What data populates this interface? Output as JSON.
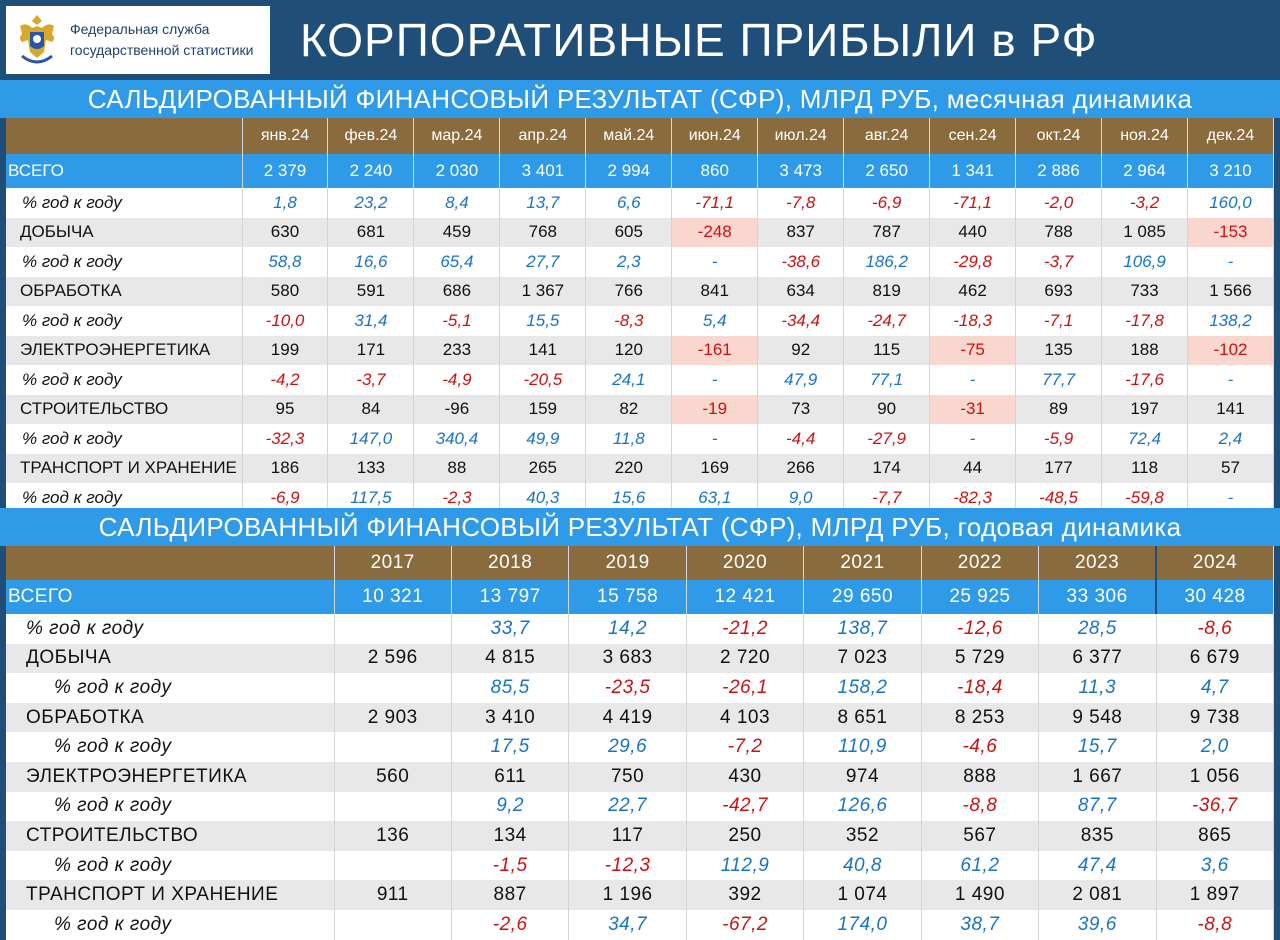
{
  "header": {
    "org_line1": "Федеральная служба",
    "org_line2": "государственной статистики",
    "title": "КОРПОРАТИВНЫЕ ПРИБЫЛИ в РФ"
  },
  "monthly": {
    "title": "САЛЬДИРОВАННЫЙ ФИНАНСОВЫЙ РЕЗУЛЬТАТ (СФР), МЛРД РУБ, месячная динамика",
    "months": [
      "янв.24",
      "фев.24",
      "мар.24",
      "апр.24",
      "май.24",
      "июн.24",
      "июл.24",
      "авг.24",
      "сен.24",
      "окт.24",
      "ноя.24",
      "дек.24"
    ],
    "total": {
      "label": "ВСЕГО",
      "values": [
        "2 379",
        "2 240",
        "2 030",
        "3 401",
        "2 994",
        "860",
        "3 473",
        "2 650",
        "1 341",
        "2 886",
        "2 964",
        "3 210"
      ]
    },
    "total_pct": {
      "label": "% год к году",
      "values": [
        "1,8",
        "23,2",
        "8,4",
        "13,7",
        "6,6",
        "-71,1",
        "-7,8",
        "-6,9",
        "-71,1",
        "-2,0",
        "-3,2",
        "160,0"
      ]
    },
    "rows": [
      {
        "label": "ДОБЫЧА",
        "values": [
          "630",
          "681",
          "459",
          "768",
          "605",
          "-248",
          "837",
          "787",
          "440",
          "788",
          "1 085",
          "-153"
        ],
        "pct_label": "% год к году",
        "pct": [
          "58,8",
          "16,6",
          "65,4",
          "27,7",
          "2,3",
          "-",
          "-38,6",
          "186,2",
          "-29,8",
          "-3,7",
          "106,9",
          "-"
        ]
      },
      {
        "label": "ОБРАБОТКА",
        "values": [
          "580",
          "591",
          "686",
          "1 367",
          "766",
          "841",
          "634",
          "819",
          "462",
          "693",
          "733",
          "1 566"
        ],
        "pct_label": "% год к году",
        "pct": [
          "-10,0",
          "31,4",
          "-5,1",
          "15,5",
          "-8,3",
          "5,4",
          "-34,4",
          "-24,7",
          "-18,3",
          "-7,1",
          "-17,8",
          "138,2"
        ]
      },
      {
        "label": "ЭЛЕКТРОЭНЕРГЕТИКА",
        "values": [
          "199",
          "171",
          "233",
          "141",
          "120",
          "-161",
          "92",
          "115",
          "-75",
          "135",
          "188",
          "-102"
        ],
        "pct_label": "% год к году",
        "pct": [
          "-4,2",
          "-3,7",
          "-4,9",
          "-20,5",
          "24,1",
          "-",
          "47,9",
          "77,1",
          "-",
          "77,7",
          "-17,6",
          "-"
        ]
      },
      {
        "label": "СТРОИТЕЛЬСТВО",
        "values": [
          "95",
          "84",
          "-96",
          "159",
          "82",
          "-19",
          "73",
          "90",
          "-31",
          "89",
          "197",
          "141"
        ],
        "pct_label": "% год к году",
        "pct": [
          "-32,3",
          "147,0",
          "340,4",
          "49,9",
          "11,8",
          "-",
          "-4,4",
          "-27,9",
          "-",
          "-5,9",
          "72,4",
          "2,4"
        ]
      },
      {
        "label": "ТРАНСПОРТ И ХРАНЕНИЕ",
        "values": [
          "186",
          "133",
          "88",
          "265",
          "220",
          "169",
          "266",
          "174",
          "44",
          "177",
          "118",
          "57"
        ],
        "pct_label": "% год к году",
        "pct": [
          "-6,9",
          "117,5",
          "-2,3",
          "40,3",
          "15,6",
          "63,1",
          "9,0",
          "-7,7",
          "-82,3",
          "-48,5",
          "-59,8",
          "-"
        ]
      }
    ],
    "highlight_color": "#f9d7ce"
  },
  "annual": {
    "title": "САЛЬДИРОВАННЫЙ ФИНАНСОВЫЙ РЕЗУЛЬТАТ (СФР), МЛРД РУБ, годовая динамика",
    "years": [
      "2017",
      "2018",
      "2019",
      "2020",
      "2021",
      "2022",
      "2023",
      "2024"
    ],
    "total": {
      "label": "ВСЕГО",
      "values": [
        "10 321",
        "13 797",
        "15 758",
        "12 421",
        "29 650",
        "25 925",
        "33 306",
        "30 428"
      ]
    },
    "total_pct": {
      "label": "% год к году",
      "values": [
        "",
        "33,7",
        "14,2",
        "-21,2",
        "138,7",
        "-12,6",
        "28,5",
        "-8,6"
      ]
    },
    "rows": [
      {
        "label": "ДОБЫЧА",
        "values": [
          "2 596",
          "4 815",
          "3 683",
          "2 720",
          "7 023",
          "5 729",
          "6 377",
          "6 679"
        ],
        "pct_label": "% год к году",
        "pct": [
          "",
          "85,5",
          "-23,5",
          "-26,1",
          "158,2",
          "-18,4",
          "11,3",
          "4,7"
        ]
      },
      {
        "label": "ОБРАБОТКА",
        "values": [
          "2 903",
          "3 410",
          "4 419",
          "4 103",
          "8 651",
          "8 253",
          "9 548",
          "9 738"
        ],
        "pct_label": "% год к году",
        "pct": [
          "",
          "17,5",
          "29,6",
          "-7,2",
          "110,9",
          "-4,6",
          "15,7",
          "2,0"
        ]
      },
      {
        "label": "ЭЛЕКТРОЭНЕРГЕТИКА",
        "values": [
          "560",
          "611",
          "750",
          "430",
          "974",
          "888",
          "1 667",
          "1 056"
        ],
        "pct_label": "% год к году",
        "pct": [
          "",
          "9,2",
          "22,7",
          "-42,7",
          "126,6",
          "-8,8",
          "87,7",
          "-36,7"
        ]
      },
      {
        "label": "СТРОИТЕЛЬСТВО",
        "values": [
          "136",
          "134",
          "117",
          "250",
          "352",
          "567",
          "835",
          "865"
        ],
        "pct_label": "% год к году",
        "pct": [
          "",
          "-1,5",
          "-12,3",
          "112,9",
          "40,8",
          "61,2",
          "47,4",
          "3,6"
        ]
      },
      {
        "label": "ТРАНСПОРТ И ХРАНЕНИЕ",
        "values": [
          "911",
          "887",
          "1 196",
          "392",
          "1 074",
          "1 490",
          "2 081",
          "1 897"
        ],
        "pct_label": "% год к году",
        "pct": [
          "",
          "-2,6",
          "34,7",
          "-67,2",
          "174,0",
          "38,7",
          "39,6",
          "-8,8"
        ]
      }
    ]
  },
  "colors": {
    "header_bg": "#1f4e79",
    "band": "#2e9ae8",
    "column_header": "#8a6b3e",
    "positive": "#1874c8",
    "negative": "#cc1111"
  },
  "chart_data": {
    "type": "table",
    "tables": [
      {
        "title": "САЛЬДИРОВАННЫЙ ФИНАНСОВЫЙ РЕЗУЛЬТАТ (СФР), МЛРД РУБ, месячная динамика",
        "columns": [
          "янв.24",
          "фев.24",
          "мар.24",
          "апр.24",
          "май.24",
          "июн.24",
          "июл.24",
          "авг.24",
          "сен.24",
          "окт.24",
          "ноя.24",
          "дек.24"
        ],
        "series": [
          {
            "name": "ВСЕГО",
            "values": [
              2379,
              2240,
              2030,
              3401,
              2994,
              860,
              3473,
              2650,
              1341,
              2886,
              2964,
              3210
            ]
          },
          {
            "name": "ДОБЫЧА",
            "values": [
              630,
              681,
              459,
              768,
              605,
              -248,
              837,
              787,
              440,
              788,
              1085,
              -153
            ]
          },
          {
            "name": "ОБРАБОТКА",
            "values": [
              580,
              591,
              686,
              1367,
              766,
              841,
              634,
              819,
              462,
              693,
              733,
              1566
            ]
          },
          {
            "name": "ЭЛЕКТРОЭНЕРГЕТИКА",
            "values": [
              199,
              171,
              233,
              141,
              120,
              -161,
              92,
              115,
              -75,
              135,
              188,
              -102
            ]
          },
          {
            "name": "СТРОИТЕЛЬСТВО",
            "values": [
              95,
              84,
              -96,
              159,
              82,
              -19,
              73,
              90,
              -31,
              89,
              197,
              141
            ]
          },
          {
            "name": "ТРАНСПОРТ И ХРАНЕНИЕ",
            "values": [
              186,
              133,
              88,
              265,
              220,
              169,
              266,
              174,
              44,
              177,
              118,
              57
            ]
          }
        ]
      },
      {
        "title": "САЛЬДИРОВАННЫЙ ФИНАНСОВЫЙ РЕЗУЛЬТАТ (СФР), МЛРД РУБ, годовая динамика",
        "columns": [
          "2017",
          "2018",
          "2019",
          "2020",
          "2021",
          "2022",
          "2023",
          "2024"
        ],
        "series": [
          {
            "name": "ВСЕГО",
            "values": [
              10321,
              13797,
              15758,
              12421,
              29650,
              25925,
              33306,
              30428
            ]
          },
          {
            "name": "ДОБЫЧА",
            "values": [
              2596,
              4815,
              3683,
              2720,
              7023,
              5729,
              6377,
              6679
            ]
          },
          {
            "name": "ОБРАБОТКА",
            "values": [
              2903,
              3410,
              4419,
              4103,
              8651,
              8253,
              9548,
              9738
            ]
          },
          {
            "name": "ЭЛЕКТРОЭНЕРГЕТИКА",
            "values": [
              560,
              611,
              750,
              430,
              974,
              888,
              1667,
              1056
            ]
          },
          {
            "name": "СТРОИТЕЛЬСТВО",
            "values": [
              136,
              134,
              117,
              250,
              352,
              567,
              835,
              865
            ]
          },
          {
            "name": "ТРАНСПОРТ И ХРАНЕНИЕ",
            "values": [
              911,
              887,
              1196,
              392,
              1074,
              1490,
              2081,
              1897
            ]
          }
        ]
      }
    ]
  }
}
